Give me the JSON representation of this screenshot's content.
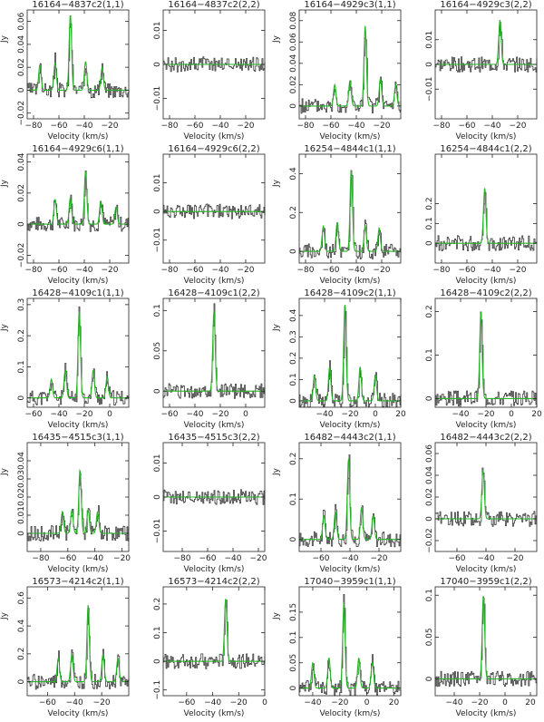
{
  "chart_data": [
    {
      "type": "line",
      "title": "16164−4837c2(1,1)",
      "xlabel": "Velocity (km/s)",
      "ylabel": "Jy",
      "xlim": [
        -85,
        -5
      ],
      "ylim": [
        -0.025,
        0.07
      ],
      "xticks": [
        -80,
        -60,
        -40,
        -20
      ],
      "xtick_labels": [
        "−80",
        "−60",
        "−40",
        "−20"
      ],
      "yticks": [
        -0.02,
        0,
        0.02,
        0.04,
        0.06
      ],
      "ytick_labels": [
        "−0.02",
        "0",
        "0.02",
        "0.04",
        "0.06"
      ],
      "series": [
        {
          "values": [
            [
              -75,
              0.022
            ],
            [
              -63,
              0.024
            ],
            [
              -51,
              0.066
            ],
            [
              -39,
              0.025
            ],
            [
              -26,
              0.02
            ]
          ]
        }
      ]
    },
    {
      "type": "line",
      "title": "16164−4837c2(2,2)",
      "xlabel": "Velocity (km/s)",
      "ylabel": "",
      "xlim": [
        -85,
        -5
      ],
      "ylim": [
        -0.016,
        0.016
      ],
      "xticks": [
        -80,
        -60,
        -40,
        -20
      ],
      "xtick_labels": [
        "−80",
        "−60",
        "−40",
        "−20"
      ],
      "yticks": [
        -0.01,
        0,
        0.01
      ],
      "ytick_labels": [
        "−0.01",
        "0",
        "0.01"
      ],
      "series": [
        {
          "values": []
        }
      ]
    },
    {
      "type": "line",
      "title": "16164−4929c3(1,1)",
      "xlabel": "Velocity (km/s)",
      "ylabel": "Jy",
      "xlim": [
        -85,
        -5
      ],
      "ylim": [
        -0.012,
        0.09
      ],
      "xticks": [
        -80,
        -60,
        -40,
        -20
      ],
      "xtick_labels": [
        "−80",
        "−60",
        "−40",
        "−20"
      ],
      "yticks": [
        0,
        0.02,
        0.04,
        0.06,
        0.08
      ],
      "ytick_labels": [
        "0",
        "0.02",
        "0.04",
        "0.06",
        "0.08"
      ],
      "series": [
        {
          "values": [
            [
              -57,
              0.02
            ],
            [
              -45,
              0.024
            ],
            [
              -33,
              0.075
            ],
            [
              -21,
              0.026
            ],
            [
              -9,
              0.02
            ]
          ]
        }
      ]
    },
    {
      "type": "line",
      "title": "16164−4929c3(2,2)",
      "xlabel": "Velocity (km/s)",
      "ylabel": "",
      "xlim": [
        -85,
        -5
      ],
      "ylim": [
        -0.022,
        0.022
      ],
      "xticks": [
        -80,
        -60,
        -40,
        -20
      ],
      "xtick_labels": [
        "−80",
        "−60",
        "−40",
        "−20"
      ],
      "yticks": [
        -0.01,
        0,
        0.01
      ],
      "ytick_labels": [
        "−0.01",
        "0",
        "0.01"
      ],
      "series": [
        {
          "values": [
            [
              -34,
              0.018
            ]
          ]
        }
      ]
    },
    {
      "type": "line",
      "title": "16164−4929c6(1,1)",
      "xlabel": "Velocity (km/s)",
      "ylabel": "Jy",
      "xlim": [
        -85,
        -5
      ],
      "ylim": [
        -0.025,
        0.045
      ],
      "xticks": [
        -80,
        -60,
        -40,
        -20
      ],
      "xtick_labels": [
        "−80",
        "−60",
        "−40",
        "−20"
      ],
      "yticks": [
        -0.02,
        0,
        0.02,
        0.04
      ],
      "ytick_labels": [
        "−0.02",
        "0",
        "0.02",
        "0.04"
      ],
      "series": [
        {
          "values": [
            [
              -63,
              0.016
            ],
            [
              -51,
              0.017
            ],
            [
              -39,
              0.034
            ],
            [
              -27,
              0.015
            ],
            [
              -15,
              0.011
            ]
          ]
        }
      ]
    },
    {
      "type": "line",
      "title": "16164−4929c6(2,2)",
      "xlabel": "Velocity (km/s)",
      "ylabel": "",
      "xlim": [
        -85,
        -5
      ],
      "ylim": [
        -0.018,
        0.02
      ],
      "xticks": [
        -80,
        -60,
        -40,
        -20
      ],
      "xtick_labels": [
        "−80",
        "−60",
        "−40",
        "−20"
      ],
      "yticks": [
        -0.01,
        0,
        0.01
      ],
      "ytick_labels": [
        "−0.01",
        "0",
        "0.01"
      ],
      "series": [
        {
          "values": []
        }
      ]
    },
    {
      "type": "line",
      "title": "16254−4844c1(1,1)",
      "xlabel": "Velocity (km/s)",
      "ylabel": "Jy",
      "xlim": [
        -85,
        -5
      ],
      "ylim": [
        -0.06,
        0.5
      ],
      "xticks": [
        -80,
        -60,
        -40,
        -20
      ],
      "xtick_labels": [
        "−80",
        "−60",
        "−40",
        "−20"
      ],
      "yticks": [
        0,
        0.2,
        0.4
      ],
      "ytick_labels": [
        "0",
        "0.2",
        "0.4"
      ],
      "series": [
        {
          "values": [
            [
              -66,
              0.13
            ],
            [
              -55,
              0.15
            ],
            [
              -44,
              0.42
            ],
            [
              -33,
              0.13
            ],
            [
              -22,
              0.12
            ]
          ]
        }
      ]
    },
    {
      "type": "line",
      "title": "16254−4844c1(2,2)",
      "xlabel": "Velocity (km/s)",
      "ylabel": "",
      "xlim": [
        -85,
        -5
      ],
      "ylim": [
        -0.1,
        0.45
      ],
      "xticks": [
        -80,
        -60,
        -40,
        -20
      ],
      "xtick_labels": [
        "−80",
        "−60",
        "−40",
        "−20"
      ],
      "yticks": [
        0,
        0.1,
        0.2
      ],
      "ytick_labels": [
        "0",
        "0.1",
        "0.2"
      ],
      "series": [
        {
          "values": [
            [
              -46,
              0.28
            ]
          ]
        }
      ]
    },
    {
      "type": "line",
      "title": "16428−4109c1(1,1)",
      "xlabel": "Velocity (km/s)",
      "ylabel": "Jy",
      "xlim": [
        -65,
        15
      ],
      "ylim": [
        -0.03,
        0.32
      ],
      "xticks": [
        -60,
        -40,
        -20,
        0
      ],
      "xtick_labels": [
        "−60",
        "−40",
        "−20",
        "0"
      ],
      "yticks": [
        0,
        0.1,
        0.2,
        0.3
      ],
      "ytick_labels": [
        "0",
        "0.1",
        "0.2",
        "0.3"
      ],
      "series": [
        {
          "values": [
            [
              -46,
              0.06
            ],
            [
              -35,
              0.09
            ],
            [
              -24,
              0.28
            ],
            [
              -13,
              0.09
            ],
            [
              -2,
              0.07
            ]
          ]
        }
      ]
    },
    {
      "type": "line",
      "title": "16428−4109c1(2,2)",
      "xlabel": "Velocity (km/s)",
      "ylabel": "",
      "xlim": [
        -65,
        15
      ],
      "ylim": [
        -0.02,
        0.115
      ],
      "xticks": [
        -60,
        -40,
        -20,
        0
      ],
      "xtick_labels": [
        "−60",
        "−40",
        "−20",
        "0"
      ],
      "yticks": [
        0,
        0.05,
        0.1
      ],
      "ytick_labels": [
        "0",
        "0.05",
        "0.1"
      ],
      "series": [
        {
          "values": [
            [
              -25,
              0.1
            ]
          ]
        }
      ]
    },
    {
      "type": "line",
      "title": "16428−4109c2(1,1)",
      "xlabel": "Velocity (km/s)",
      "ylabel": "Jy",
      "xlim": [
        -60,
        20
      ],
      "ylim": [
        -0.03,
        0.48
      ],
      "xticks": [
        -40,
        -20,
        0,
        20
      ],
      "xtick_labels": [
        "−40",
        "−20",
        "0",
        "20"
      ],
      "yticks": [
        0,
        0.1,
        0.2,
        0.3,
        0.4
      ],
      "ytick_labels": [
        "0",
        "0.1",
        "0.2",
        "0.3",
        "0.4"
      ],
      "series": [
        {
          "values": [
            [
              -48,
              0.12
            ],
            [
              -36,
              0.16
            ],
            [
              -24,
              0.45
            ],
            [
              -12,
              0.16
            ],
            [
              0,
              0.12
            ]
          ]
        }
      ]
    },
    {
      "type": "line",
      "title": "16428−4109c2(2,2)",
      "xlabel": "Velocity (km/s)",
      "ylabel": "",
      "xlim": [
        -60,
        20
      ],
      "ylim": [
        -0.02,
        0.23
      ],
      "xticks": [
        -40,
        -20,
        0,
        20
      ],
      "xtick_labels": [
        "−40",
        "−20",
        "0",
        "20"
      ],
      "yticks": [
        0,
        0.1,
        0.2
      ],
      "ytick_labels": [
        "0",
        "0.1",
        "0.2"
      ],
      "series": [
        {
          "values": [
            [
              -24,
              0.2
            ]
          ]
        }
      ]
    },
    {
      "type": "line",
      "title": "16435−4515c3(1,1)",
      "xlabel": "Velocity (km/s)",
      "ylabel": "Jy",
      "xlim": [
        -90,
        -15
      ],
      "ylim": [
        -0.01,
        0.05
      ],
      "xticks": [
        -80,
        -60,
        -40,
        -20
      ],
      "xtick_labels": [
        "−80",
        "−60",
        "−40",
        "−20"
      ],
      "yticks": [
        0,
        0.01,
        0.02,
        0.03,
        0.04
      ],
      "ytick_labels": [
        "0",
        "0.01",
        "0.02",
        "0.03",
        "0.04"
      ],
      "series": [
        {
          "values": [
            [
              -64,
              0.012
            ],
            [
              -57,
              0.013
            ],
            [
              -51,
              0.035
            ],
            [
              -45,
              0.013
            ],
            [
              -38,
              0.012
            ]
          ]
        }
      ]
    },
    {
      "type": "line",
      "title": "16435−4515c3(2,2)",
      "xlabel": "Velocity (km/s)",
      "ylabel": "",
      "xlim": [
        -95,
        -15
      ],
      "ylim": [
        -0.016,
        0.016
      ],
      "xticks": [
        -80,
        -60,
        -40,
        -20
      ],
      "xtick_labels": [
        "−80",
        "−60",
        "−40",
        "−20"
      ],
      "yticks": [
        -0.01,
        0,
        0.01
      ],
      "ytick_labels": [
        "−0.01",
        "0",
        "0.01"
      ],
      "series": [
        {
          "values": []
        }
      ]
    },
    {
      "type": "line",
      "title": "16482−4443c2(1,1)",
      "xlabel": "Velocity (km/s)",
      "ylabel": "Jy",
      "xlim": [
        -75,
        -5
      ],
      "ylim": [
        -0.03,
        0.24
      ],
      "xticks": [
        -60,
        -40,
        -20
      ],
      "xtick_labels": [
        "−60",
        "−40",
        "−20"
      ],
      "yticks": [
        0,
        0.1,
        0.2
      ],
      "ytick_labels": [
        "0",
        "0.1",
        "0.2"
      ],
      "series": [
        {
          "values": [
            [
              -58,
              0.06
            ],
            [
              -50,
              0.07
            ],
            [
              -41,
              0.2
            ],
            [
              -32,
              0.08
            ],
            [
              -24,
              0.06
            ]
          ]
        }
      ]
    },
    {
      "type": "line",
      "title": "16482−4443c2(2,2)",
      "xlabel": "Velocity (km/s)",
      "ylabel": "",
      "xlim": [
        -75,
        -5
      ],
      "ylim": [
        -0.03,
        0.07
      ],
      "xticks": [
        -60,
        -40,
        -20
      ],
      "xtick_labels": [
        "−60",
        "−40",
        "−20"
      ],
      "yticks": [
        -0.02,
        0,
        0.02,
        0.04,
        0.06
      ],
      "ytick_labels": [
        "−0.02",
        "0",
        "0.02",
        "0.04",
        "0.06"
      ],
      "series": [
        {
          "values": [
            [
              -42,
              0.045
            ]
          ]
        }
      ]
    },
    {
      "type": "line",
      "title": "16573−4214c2(1,1)",
      "xlabel": "Velocity (km/s)",
      "ylabel": "Jy",
      "xlim": [
        -75,
        0
      ],
      "ylim": [
        -0.1,
        0.68
      ],
      "xticks": [
        -60,
        -40,
        -20
      ],
      "xtick_labels": [
        "−60",
        "−40",
        "−20"
      ],
      "yticks": [
        0,
        0.2,
        0.4,
        0.6
      ],
      "ytick_labels": [
        "0",
        "0.2",
        "0.4",
        "0.6"
      ],
      "series": [
        {
          "values": [
            [
              -52,
              0.17
            ],
            [
              -42,
              0.2
            ],
            [
              -30,
              0.55
            ],
            [
              -19,
              0.2
            ],
            [
              -8,
              0.17
            ]
          ]
        }
      ]
    },
    {
      "type": "line",
      "title": "16573−4214c2(2,2)",
      "xlabel": "Velocity (km/s)",
      "ylabel": "",
      "xlim": [
        -78,
        0
      ],
      "ylim": [
        -0.12,
        0.26
      ],
      "xticks": [
        -60,
        -40,
        -20,
        0
      ],
      "xtick_labels": [
        "−60",
        "−40",
        "−20",
        "0"
      ],
      "yticks": [
        -0.1,
        0,
        0.1,
        0.2
      ],
      "ytick_labels": [
        "−0.1",
        "0",
        "0.1",
        "0.2"
      ],
      "series": [
        {
          "values": [
            [
              -30,
              0.22
            ]
          ]
        }
      ]
    },
    {
      "type": "line",
      "title": "17040−3959c1(1,1)",
      "xlabel": "Velocity (km/s)",
      "ylabel": "Jy",
      "xlim": [
        -50,
        25
      ],
      "ylim": [
        -0.015,
        0.2
      ],
      "xticks": [
        -40,
        -20,
        0,
        20
      ],
      "xtick_labels": [
        "−40",
        "−20",
        "0",
        "20"
      ],
      "yticks": [
        0,
        0.05,
        0.1,
        0.15
      ],
      "ytick_labels": [
        "0",
        "0.05",
        "0.1",
        "0.15"
      ],
      "series": [
        {
          "values": [
            [
              -40,
              0.05
            ],
            [
              -28,
              0.06
            ],
            [
              -17,
              0.17
            ],
            [
              -6,
              0.06
            ],
            [
              4,
              0.05
            ]
          ]
        }
      ]
    },
    {
      "type": "line",
      "title": "17040−3959c1(2,2)",
      "xlabel": "Velocity (km/s)",
      "ylabel": "",
      "xlim": [
        -55,
        25
      ],
      "ylim": [
        -0.02,
        0.11
      ],
      "xticks": [
        -40,
        -20,
        0,
        20
      ],
      "xtick_labels": [
        "−40",
        "−20",
        "0",
        "20"
      ],
      "yticks": [
        0,
        0.05,
        0.1
      ],
      "ytick_labels": [
        "0",
        "0.05",
        "0.1"
      ],
      "series": [
        {
          "values": [
            [
              -17,
              0.1
            ]
          ]
        }
      ]
    }
  ],
  "colors": {
    "data": "#3c3c3c",
    "fit": "#27b427",
    "axis": "#222222"
  }
}
